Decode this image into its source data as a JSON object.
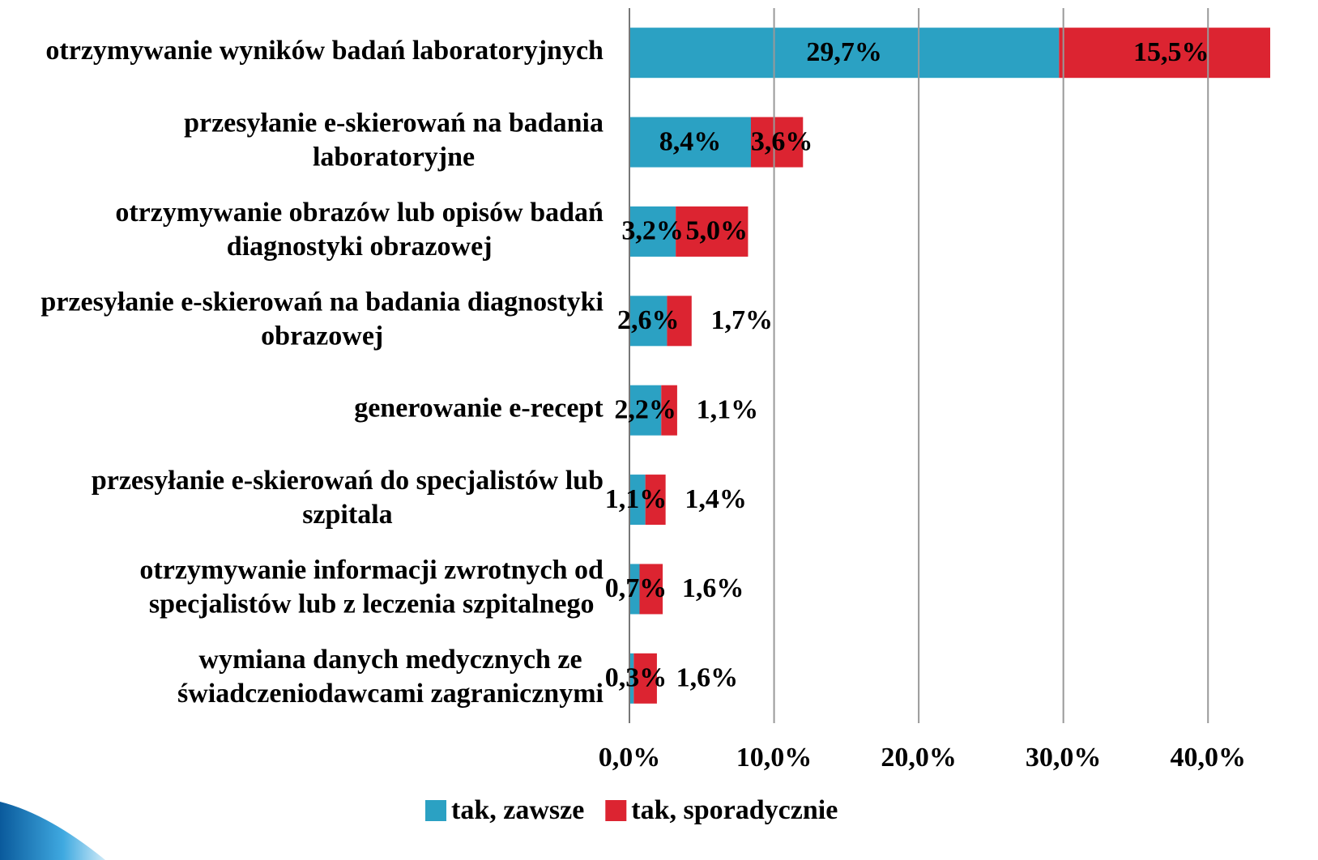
{
  "chart_data": {
    "type": "stacked-barh",
    "categories": [
      "otrzymywanie wyników badań laboratoryjnych",
      "przesyłanie e-skierowań na badania\nlaboratoryjne",
      "otrzymywanie obrazów  lub opisów badań\ndiagnostyki obrazowej",
      "przesyłanie e-skierowań na badania diagnostyki\nobrazowej",
      "generowanie e-recept",
      "przesyłanie e-skierowań do specjalistów lub\nszpitala",
      "otrzymywanie informacji zwrotnych od\nspecjalistów lub z leczenia szpitalnego",
      "wymiana danych medycznych ze\nświadczeniodawcami zagranicznymi"
    ],
    "series": [
      {
        "name": "tak, zawsze",
        "color": "#2ba1c3",
        "values": [
          29.7,
          8.4,
          3.2,
          2.6,
          2.2,
          1.1,
          0.7,
          0.3
        ],
        "value_labels": [
          "29,7%",
          "8,4%",
          "3,2%",
          "2,6%",
          "2,2%",
          "1,1%",
          "0,7%",
          "0,3%"
        ]
      },
      {
        "name": "tak, sporadycznie",
        "color": "#dc2431",
        "values": [
          15.5,
          3.6,
          5.0,
          1.7,
          1.1,
          1.4,
          1.6,
          1.6
        ],
        "value_labels": [
          "15,5%",
          "3,6%",
          "5,0%",
          "1,7%",
          "1,1%",
          "1,4%",
          "1,6%",
          "1,6%"
        ]
      }
    ],
    "xlim": [
      0,
      44.3
    ],
    "xticks": [
      {
        "value": 0,
        "label": "0,0%"
      },
      {
        "value": 10,
        "label": "10,0%"
      },
      {
        "value": 20,
        "label": "20,0%"
      },
      {
        "value": 30,
        "label": "30,0%"
      },
      {
        "value": 40,
        "label": "40,0%"
      }
    ],
    "grid": true,
    "legend": "bottom"
  }
}
